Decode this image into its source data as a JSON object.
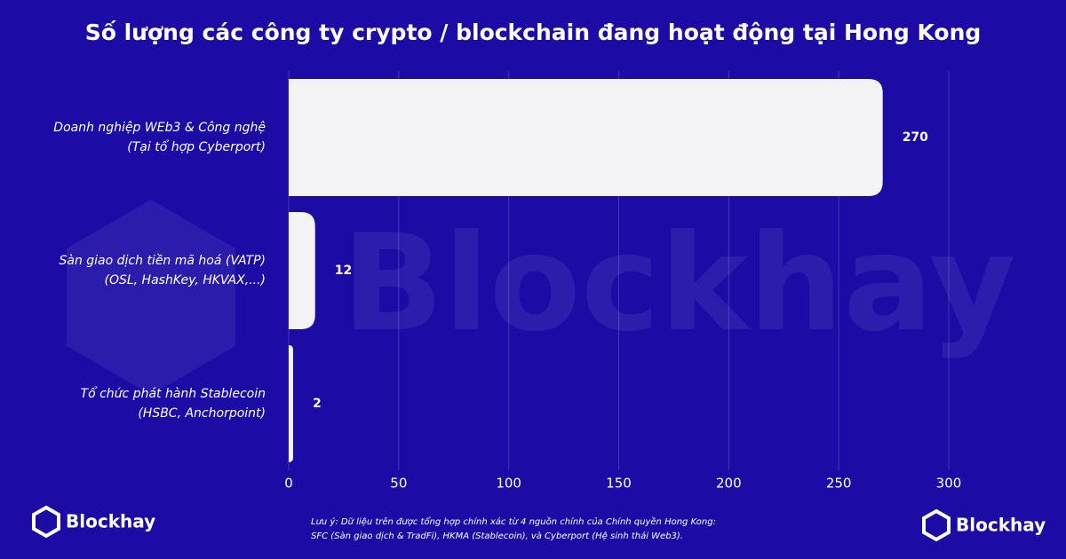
{
  "chart_data": {
    "type": "barh",
    "title": "Số lượng các công ty crypto / blockchain đang hoạt động tại Hong Kong",
    "categories": [
      [
        "Doanh nghiệp WEb3 & Công nghệ",
        "(Tại tổ hợp Cyberport)"
      ],
      [
        "Sàn giao dịch tiền mã hoá (VATP)",
        "(OSL, HashKey, HKVAX,...)"
      ],
      [
        "Tổ chức phát hành Stablecoin",
        "(HSBC, Anchorpoint)"
      ]
    ],
    "values": [
      270,
      12,
      2
    ],
    "color": "#f3f3f6",
    "xlim": [
      0,
      300
    ],
    "xticks": [
      0,
      50,
      100,
      150,
      200,
      250,
      300
    ],
    "grid": true,
    "note": [
      "Lưu ý: Dữ liệu trên được tổng hợp chính xác từ 4 nguồn chính của Chính quyền Hong Kong:",
      "SFC (Sàn giao dịch & TradFi), HKMA (Stablecoin), và Cyberport (Hệ sinh thái Web3)."
    ],
    "brand": "Blockhay"
  }
}
